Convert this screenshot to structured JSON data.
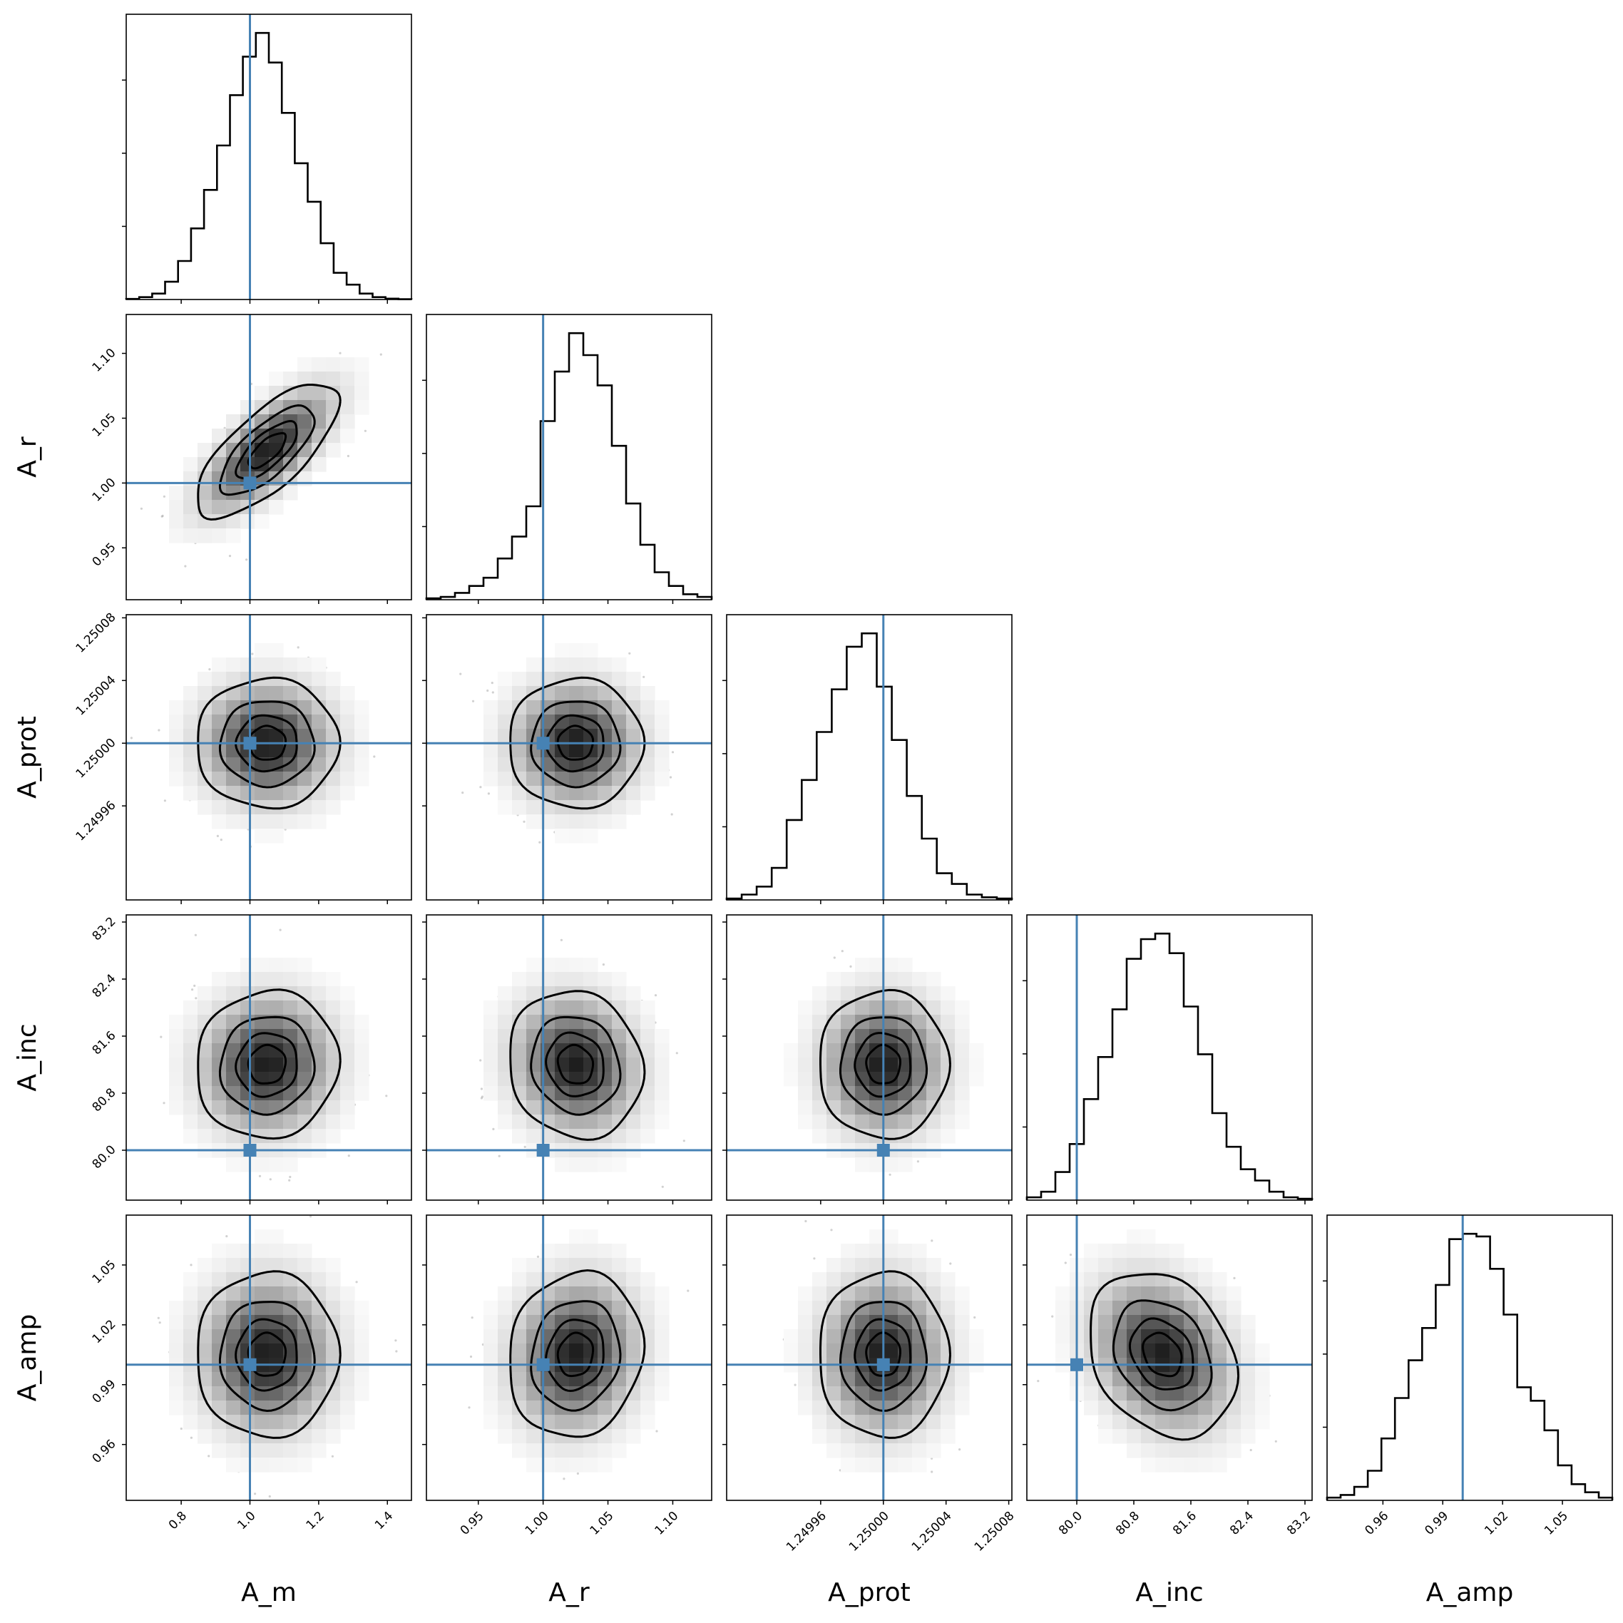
{
  "chart_data": {
    "type": "corner",
    "params": [
      "A_m",
      "A_r",
      "A_prot",
      "A_inc",
      "A_amp"
    ],
    "truths": [
      1.0,
      1.0,
      1.25,
      80.0,
      1.0
    ],
    "truth_color": "#4682b4",
    "ranges": [
      [
        0.64,
        1.47
      ],
      [
        0.91,
        1.13
      ],
      [
        1.2499,
        1.250082
      ],
      [
        79.3,
        83.3
      ],
      [
        0.932,
        1.075
      ]
    ],
    "ticks": [
      {
        "values": [
          0.8,
          1.0,
          1.2,
          1.4
        ],
        "labels": [
          "0.8",
          "1.0",
          "1.2",
          "1.4"
        ]
      },
      {
        "values": [
          0.95,
          1.0,
          1.05,
          1.1
        ],
        "labels": [
          "0.95",
          "1.00",
          "1.05",
          "1.10"
        ]
      },
      {
        "values": [
          1.24996,
          1.25,
          1.25004,
          1.25008
        ],
        "labels": [
          "1.24996",
          "1.25000",
          "1.25004",
          "1.25008"
        ]
      },
      {
        "values": [
          80.0,
          80.8,
          81.6,
          82.4,
          83.2
        ],
        "labels": [
          "80.0",
          "80.8",
          "81.6",
          "82.4",
          "83.2"
        ]
      },
      {
        "values": [
          0.96,
          0.99,
          1.02,
          1.05
        ],
        "labels": [
          "0.96",
          "0.99",
          "1.02",
          "1.05"
        ]
      }
    ],
    "histograms": [
      {
        "param": "A_m",
        "values": [
          0.002,
          0.008,
          0.02,
          0.06,
          0.13,
          0.24,
          0.37,
          0.52,
          0.69,
          0.82,
          0.9,
          0.8,
          0.63,
          0.46,
          0.33,
          0.19,
          0.09,
          0.05,
          0.02,
          0.008,
          0.003,
          0.001
        ]
      },
      {
        "param": "A_r",
        "values": [
          0.005,
          0.01,
          0.025,
          0.05,
          0.08,
          0.15,
          0.23,
          0.34,
          0.65,
          0.83,
          0.97,
          0.89,
          0.78,
          0.56,
          0.35,
          0.2,
          0.1,
          0.05,
          0.02,
          0.01
        ]
      },
      {
        "param": "A_prot",
        "values": [
          0.005,
          0.02,
          0.05,
          0.12,
          0.3,
          0.45,
          0.63,
          0.79,
          0.95,
          1.0,
          0.8,
          0.6,
          0.39,
          0.23,
          0.1,
          0.06,
          0.02,
          0.01,
          0.005
        ]
      },
      {
        "param": "A_inc",
        "values": [
          0.01,
          0.03,
          0.1,
          0.2,
          0.36,
          0.51,
          0.68,
          0.86,
          0.93,
          0.95,
          0.88,
          0.69,
          0.52,
          0.31,
          0.19,
          0.11,
          0.07,
          0.03,
          0.01,
          0.005
        ]
      },
      {
        "param": "A_amp",
        "values": [
          0.01,
          0.02,
          0.05,
          0.11,
          0.23,
          0.38,
          0.52,
          0.64,
          0.8,
          0.97,
          0.99,
          0.98,
          0.86,
          0.69,
          0.42,
          0.37,
          0.26,
          0.13,
          0.06,
          0.03,
          0.01
        ]
      }
    ],
    "joint": [
      {
        "x": "A_m",
        "y": "A_r",
        "cx": 1.05,
        "cy": 1.025,
        "sx": 0.1,
        "sy": 0.025,
        "rho": 0.72
      },
      {
        "x": "A_m",
        "y": "A_prot",
        "cx": 1.05,
        "cy": 1.25,
        "sx": 0.1,
        "sy": 2e-05,
        "rho": 0.0
      },
      {
        "x": "A_r",
        "y": "A_prot",
        "cx": 1.025,
        "cy": 1.25,
        "sx": 0.025,
        "sy": 2e-05,
        "rho": 0.0
      },
      {
        "x": "A_m",
        "y": "A_inc",
        "cx": 1.05,
        "cy": 81.2,
        "sx": 0.1,
        "sy": 0.5,
        "rho": 0.05
      },
      {
        "x": "A_r",
        "y": "A_inc",
        "cx": 1.025,
        "cy": 81.2,
        "sx": 0.025,
        "sy": 0.5,
        "rho": -0.1
      },
      {
        "x": "A_prot",
        "y": "A_inc",
        "cx": 1.25,
        "cy": 81.2,
        "sx": 2e-05,
        "sy": 0.5,
        "rho": 0.0
      },
      {
        "x": "A_m",
        "y": "A_amp",
        "cx": 1.05,
        "cy": 1.005,
        "sx": 0.1,
        "sy": 0.02,
        "rho": 0.0
      },
      {
        "x": "A_r",
        "y": "A_amp",
        "cx": 1.025,
        "cy": 1.005,
        "sx": 0.025,
        "sy": 0.02,
        "rho": 0.1
      },
      {
        "x": "A_prot",
        "y": "A_amp",
        "cx": 1.25,
        "cy": 1.005,
        "sx": 2e-05,
        "sy": 0.02,
        "rho": 0.0
      },
      {
        "x": "A_inc",
        "y": "A_amp",
        "cx": 81.2,
        "cy": 1.005,
        "sx": 0.5,
        "sy": 0.02,
        "rho": -0.25
      }
    ],
    "contour_levels_sigma": [
      0.5,
      1.0,
      1.5,
      2.0
    ],
    "grid": false
  }
}
